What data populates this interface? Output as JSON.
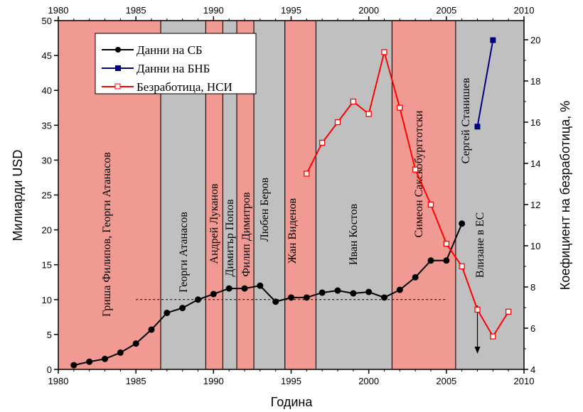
{
  "chart_data": {
    "type": "line",
    "xlabel": "Година",
    "ylabel": "Милиарди USD",
    "ylabel_right": "Коефициент на безработица, %",
    "xlim": [
      1980,
      2010
    ],
    "ylim": [
      0,
      50
    ],
    "ylim_right": [
      4,
      20.93
    ],
    "x_ticks": [
      "1980",
      "1985",
      "1990",
      "1995",
      "2000",
      "2005",
      "2010"
    ],
    "y_ticks": [
      "0",
      "5",
      "10",
      "15",
      "20",
      "25",
      "30",
      "35",
      "40",
      "45",
      "50"
    ],
    "y_right_ticks": [
      "4",
      "6",
      "8",
      "10",
      "12",
      "14",
      "16",
      "18",
      "20"
    ],
    "legend_position": "top-left",
    "series": [
      {
        "name": "Данни на СБ",
        "axis": "left",
        "color": "#000000",
        "marker": "circle",
        "x": [
          1981,
          1982,
          1983,
          1984,
          1985,
          1986,
          1987,
          1988,
          1989,
          1990,
          1991,
          1992,
          1993,
          1994,
          1995,
          1996,
          1997,
          1998,
          1999,
          2000,
          2001,
          2002,
          2003,
          2004,
          2005,
          2006
        ],
        "y": [
          0.6,
          1.1,
          1.5,
          2.4,
          3.7,
          5.7,
          8.1,
          8.8,
          10.0,
          10.8,
          11.6,
          11.6,
          12.0,
          9.7,
          10.3,
          10.3,
          11.0,
          11.3,
          10.9,
          11.1,
          10.3,
          11.4,
          13.2,
          15.6,
          15.6,
          20.9
        ]
      },
      {
        "name": "Данни на БНБ",
        "axis": "left",
        "color": "#000080",
        "marker": "square",
        "x": [
          2007,
          2008
        ],
        "y": [
          34.8,
          47.2
        ]
      },
      {
        "name": "Безработица, НСИ",
        "axis": "right",
        "color": "#ff0000",
        "marker": "open-square",
        "x": [
          1996,
          1997,
          1998,
          1999,
          2000,
          2001,
          2002,
          2003,
          2004,
          2005,
          2006,
          2007,
          2008,
          2009
        ],
        "y": [
          13.5,
          15.0,
          16.0,
          17.0,
          16.4,
          19.4,
          16.7,
          13.7,
          12.0,
          10.1,
          9.0,
          6.9,
          5.6,
          6.8
        ]
      }
    ],
    "reference_line": {
      "y": 10,
      "x": [
        1985,
        2005
      ],
      "style": "dashed"
    },
    "bands": [
      {
        "start": 1980,
        "end": 1986.6,
        "color": "#f19a93",
        "label": "Гриша Филипов, Георги Атанасов"
      },
      {
        "start": 1986.6,
        "end": 1989.5,
        "color": "#c0c0c0",
        "label": "Георги Атанасов"
      },
      {
        "start": 1989.5,
        "end": 1990.6,
        "color": "#f19a93",
        "label": "Андрей Луканов"
      },
      {
        "start": 1990.6,
        "end": 1991.5,
        "color": "#c0c0c0",
        "label": "Димитър Попов"
      },
      {
        "start": 1991.5,
        "end": 1992.6,
        "color": "#f19a93",
        "label": "Филип Димитров"
      },
      {
        "start": 1992.6,
        "end": 1994.6,
        "color": "#c0c0c0",
        "label": "Любен Беров"
      },
      {
        "start": 1994.6,
        "end": 1996.6,
        "color": "#f19a93",
        "label": "Жан Виденов"
      },
      {
        "start": 1996.6,
        "end": 2001.5,
        "color": "#c0c0c0",
        "label": "Иван Костов"
      },
      {
        "start": 2001.5,
        "end": 2005.6,
        "color": "#f19a93",
        "label": "Симеон Сакскобургготски"
      },
      {
        "start": 2005.6,
        "end": 2010,
        "color": "#c0c0c0",
        "label": "Сергей Станишев"
      }
    ],
    "annotation": {
      "text": "Влизане в ЕС",
      "x": 2007
    }
  }
}
